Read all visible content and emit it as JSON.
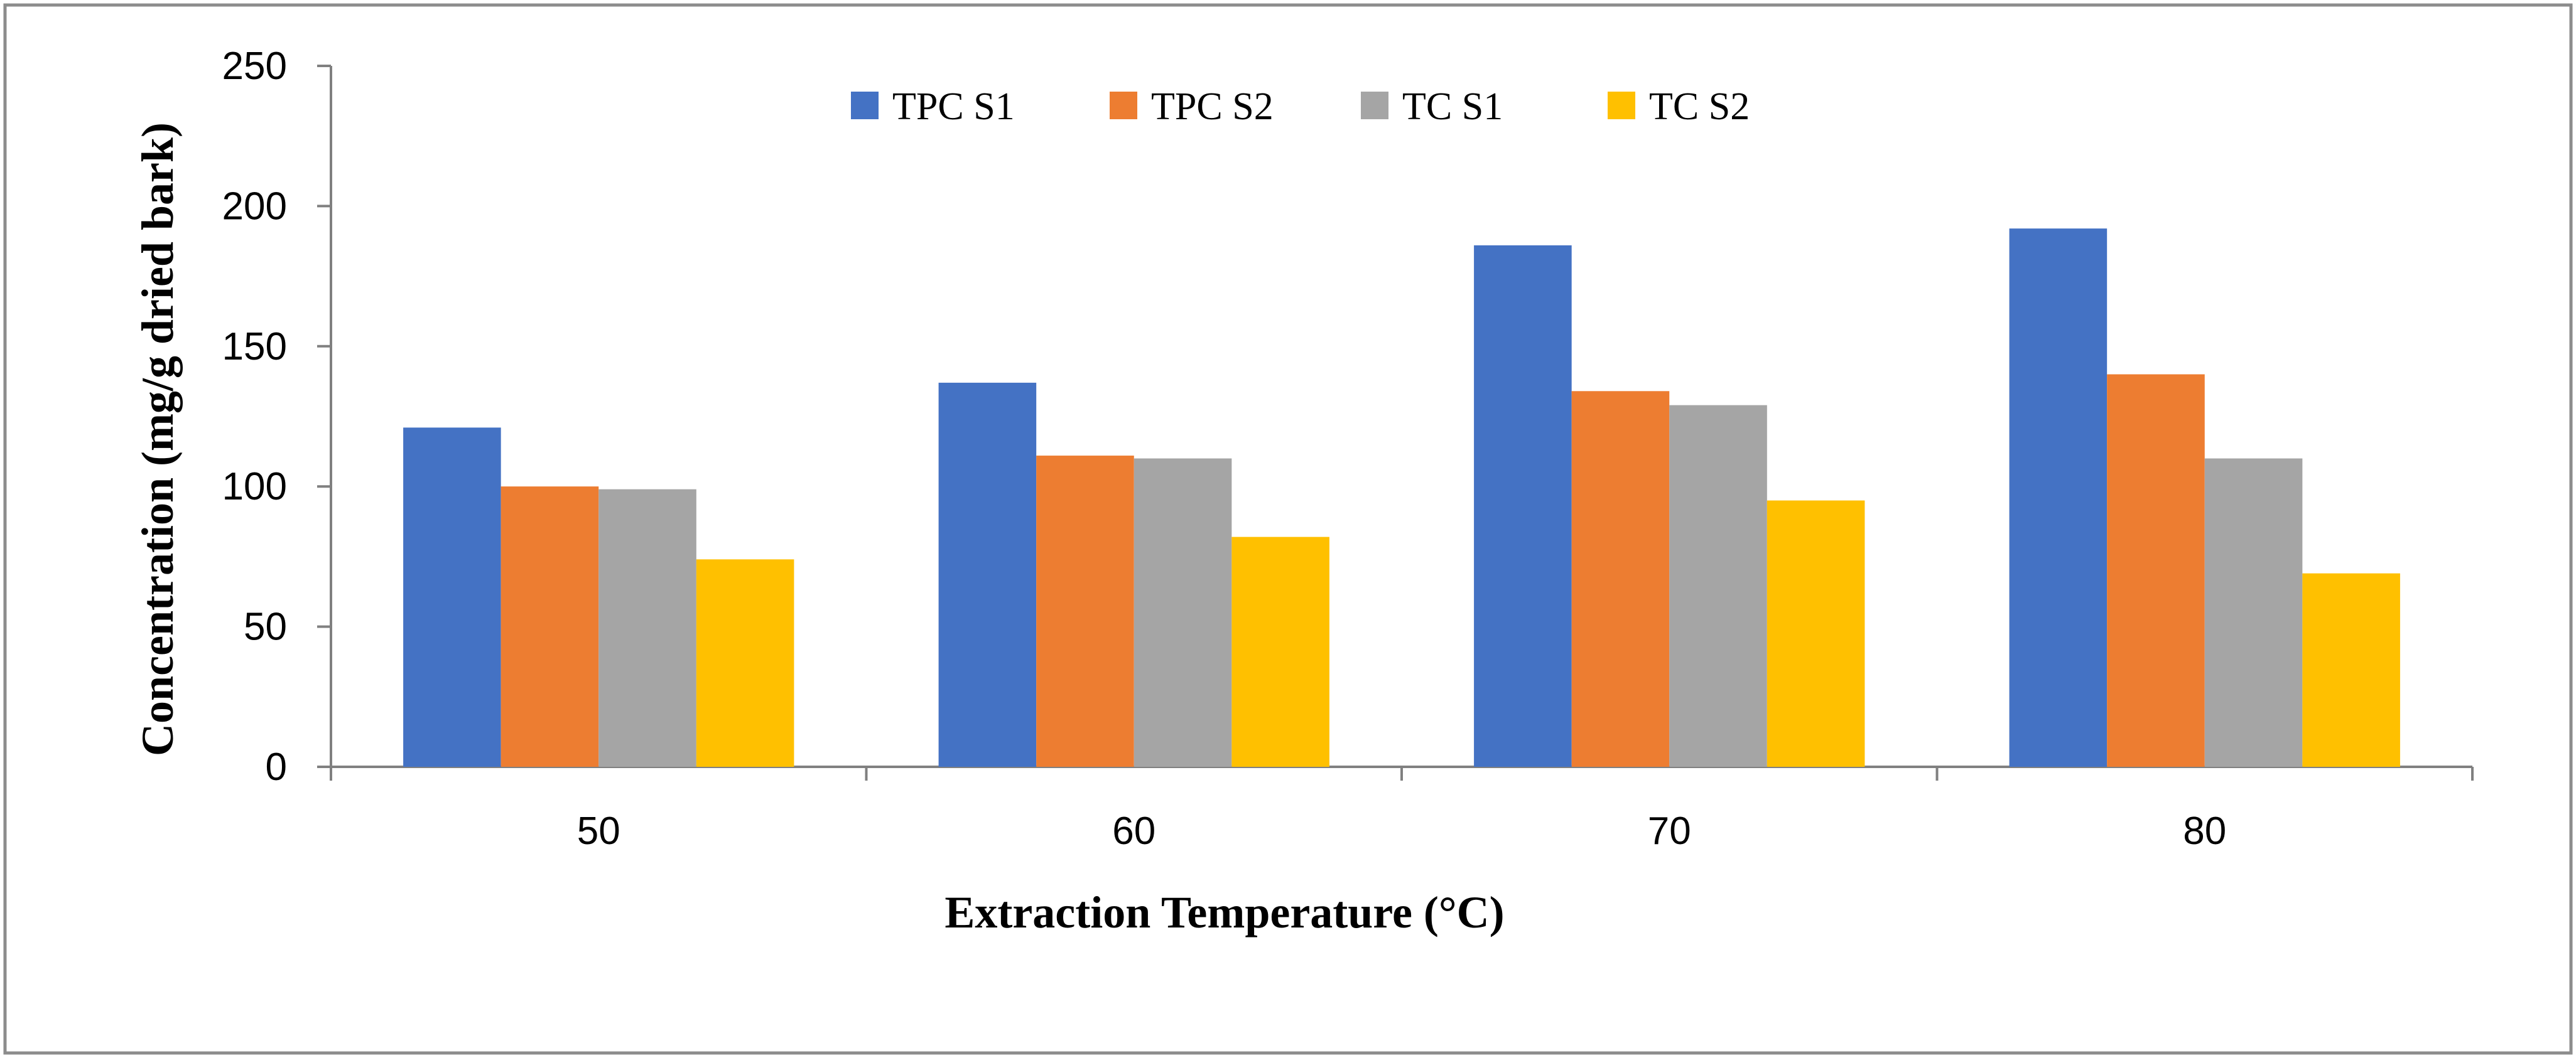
{
  "chart_data": {
    "type": "bar",
    "title": "",
    "xlabel": "Extraction Temperature (°C)",
    "ylabel": "Concentration (mg/g dried bark)",
    "categories": [
      "50",
      "60",
      "70",
      "80"
    ],
    "series": [
      {
        "name": "TPC S1",
        "color": "#4472C4",
        "values": [
          121,
          137,
          186,
          192
        ]
      },
      {
        "name": "TPC S2",
        "color": "#ED7D31",
        "values": [
          100,
          111,
          134,
          140
        ]
      },
      {
        "name": "TC S1",
        "color": "#A5A5A5",
        "values": [
          99,
          110,
          129,
          110
        ]
      },
      {
        "name": "TC S2",
        "color": "#FFC000",
        "values": [
          74,
          82,
          95,
          69
        ]
      }
    ],
    "ylim": [
      0,
      250
    ],
    "yticks": [
      "0",
      "50",
      "100",
      "150",
      "200",
      "250"
    ],
    "grid": false,
    "legend_position": "top-center"
  },
  "colors": {
    "axis": "#808080",
    "frame": "#8c8c8c"
  }
}
